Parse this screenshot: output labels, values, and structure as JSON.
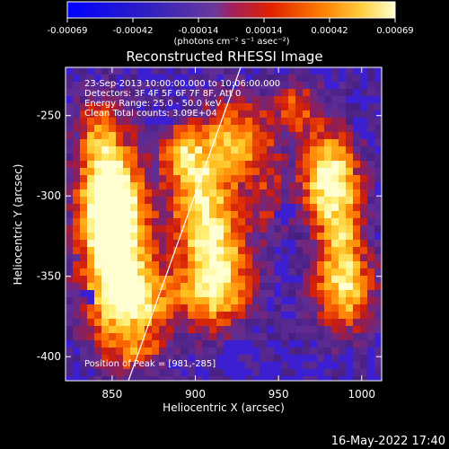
{
  "colorbar": {
    "tick_labels": [
      "-0.00069",
      "-0.00042",
      "-0.00014",
      "0.00014",
      "0.00042",
      "0.00069"
    ],
    "unit_label": "(photons cm⁻² s⁻¹ asec⁻²)"
  },
  "image": {
    "title": "Reconstructed RHESSI Image",
    "info_lines": [
      "23-Sep-2013 10:00:00.000 to 10:06:00.000",
      "Detectors: 3F 4F 5F 6F 7F 8F, Att 0",
      "Energy Range: 25.0 - 50.0 keV",
      "Clean    Total counts: 3.09E+04"
    ],
    "peak_label": "Position of Peak = [981,-285]"
  },
  "axes": {
    "xlabel": "Heliocentric X (arcsec)",
    "ylabel": "Heliocentric Y (arcsec)",
    "xticks": [
      850,
      900,
      950,
      1000
    ],
    "yticks": [
      -250,
      -300,
      -350,
      -400
    ],
    "xlim": [
      822,
      1012
    ],
    "ylim": [
      -415,
      -220
    ]
  },
  "footer": {
    "timestamp": "16-May-2022 17:40"
  },
  "colors": {
    "low": "#0000ff",
    "mid": "#5a2a9a",
    "high": "#ff3000",
    "peak": "#ffffa0"
  }
}
